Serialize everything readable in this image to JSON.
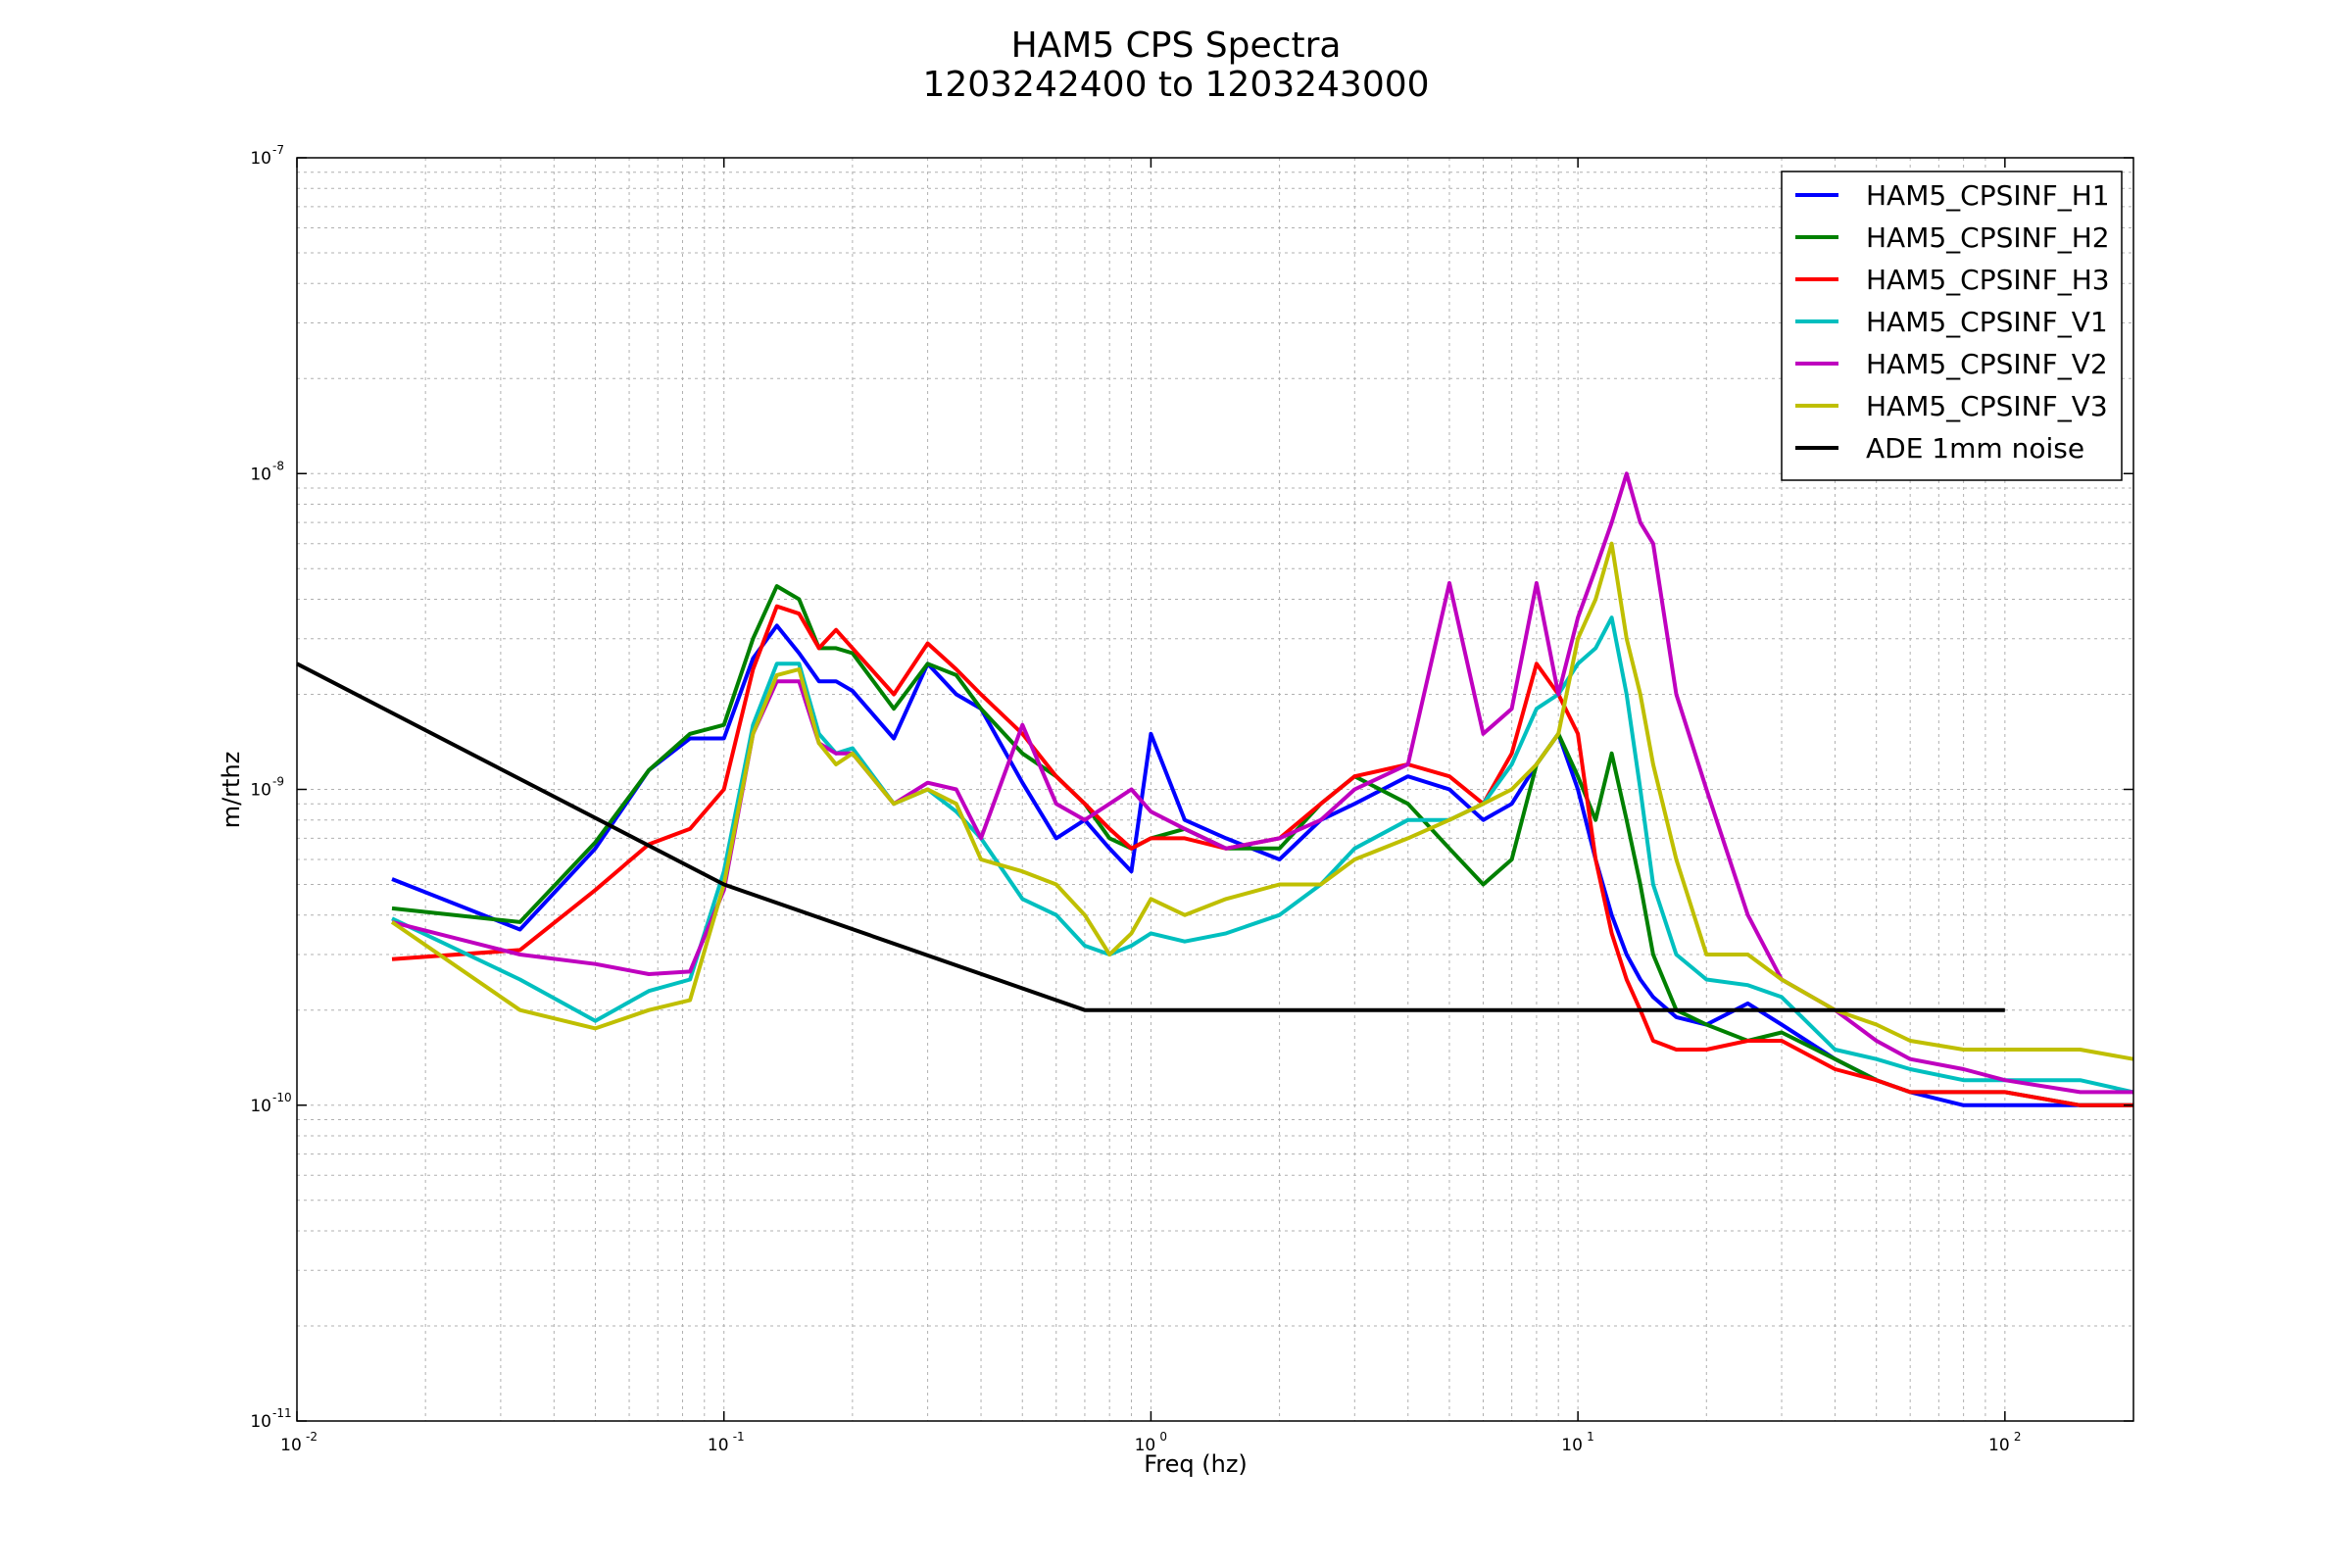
{
  "chart_data": {
    "type": "line",
    "title": "HAM5 CPS Spectra",
    "subtitle": "1203242400 to 1203243000",
    "xlabel": "Freq (hz)",
    "ylabel": "m/rthz",
    "x_scale": "log",
    "y_scale": "log",
    "xlim": [
      0.01,
      200
    ],
    "ylim": [
      1e-11,
      1e-07
    ],
    "grid": true,
    "legend_position": "top-right",
    "x_ticks": [
      {
        "value": 0.01,
        "base": "10",
        "exp": "-2"
      },
      {
        "value": 0.1,
        "base": "10",
        "exp": "-1"
      },
      {
        "value": 1,
        "base": "10",
        "exp": "0"
      },
      {
        "value": 10,
        "base": "10",
        "exp": "1"
      },
      {
        "value": 100,
        "base": "10",
        "exp": "2"
      }
    ],
    "y_ticks": [
      {
        "value": 1e-11,
        "base": "10",
        "exp": "-11"
      },
      {
        "value": 1e-10,
        "base": "10",
        "exp": "-10"
      },
      {
        "value": 1e-09,
        "base": "10",
        "exp": "-9"
      },
      {
        "value": 1e-08,
        "base": "10",
        "exp": "-8"
      },
      {
        "value": 1e-07,
        "base": "10",
        "exp": "-7"
      }
    ],
    "series": [
      {
        "name": "HAM5_CPSINF_H1",
        "color": "#0000ff",
        "x": [
          0.0167,
          0.0333,
          0.05,
          0.0667,
          0.0833,
          0.1,
          0.117,
          0.133,
          0.15,
          0.167,
          0.183,
          0.2,
          0.25,
          0.3,
          0.35,
          0.4,
          0.5,
          0.6,
          0.7,
          0.8,
          0.9,
          1.0,
          1.2,
          1.5,
          2,
          2.5,
          3,
          4,
          5,
          6,
          7,
          8,
          9,
          10,
          11,
          12,
          13,
          14,
          15,
          17,
          20,
          25,
          30,
          40,
          50,
          60,
          80,
          100,
          150,
          200
        ],
        "y": [
          5.2e-10,
          3.6e-10,
          6.5e-10,
          1.15e-09,
          1.45e-09,
          1.45e-09,
          2.6e-09,
          3.3e-09,
          2.7e-09,
          2.2e-09,
          2.2e-09,
          2.05e-09,
          1.45e-09,
          2.5e-09,
          2e-09,
          1.8e-09,
          1.05e-09,
          7e-10,
          8e-10,
          6.5e-10,
          5.5e-10,
          1.5e-09,
          8e-10,
          7e-10,
          6e-10,
          8e-10,
          9e-10,
          1.1e-09,
          1e-09,
          8e-10,
          9e-10,
          1.2e-09,
          1.5e-09,
          1e-09,
          6e-10,
          4e-10,
          3e-10,
          2.5e-10,
          2.2e-10,
          1.9e-10,
          1.8e-10,
          2.1e-10,
          1.8e-10,
          1.4e-10,
          1.2e-10,
          1.1e-10,
          1e-10,
          1e-10,
          1e-10,
          1e-10
        ]
      },
      {
        "name": "HAM5_CPSINF_H2",
        "color": "#008000",
        "x": [
          0.0167,
          0.0333,
          0.05,
          0.0667,
          0.0833,
          0.1,
          0.117,
          0.133,
          0.15,
          0.167,
          0.183,
          0.2,
          0.25,
          0.3,
          0.35,
          0.4,
          0.5,
          0.6,
          0.7,
          0.8,
          0.9,
          1.0,
          1.2,
          1.5,
          2,
          2.5,
          3,
          4,
          5,
          6,
          7,
          8,
          9,
          10,
          11,
          12,
          13,
          14,
          15,
          17,
          20,
          25,
          30,
          40,
          50,
          60,
          80,
          100,
          150,
          200
        ],
        "y": [
          4.2e-10,
          3.8e-10,
          6.8e-10,
          1.15e-09,
          1.5e-09,
          1.6e-09,
          3e-09,
          4.4e-09,
          4e-09,
          2.8e-09,
          2.8e-09,
          2.7e-09,
          1.8e-09,
          2.5e-09,
          2.3e-09,
          1.8e-09,
          1.3e-09,
          1.1e-09,
          9e-10,
          7e-10,
          6.5e-10,
          7e-10,
          7.5e-10,
          6.5e-10,
          6.5e-10,
          9e-10,
          1.1e-09,
          9e-10,
          6.5e-10,
          5e-10,
          6e-10,
          1.2e-09,
          1.5e-09,
          1.1e-09,
          8e-10,
          1.3e-09,
          8e-10,
          5e-10,
          3e-10,
          2e-10,
          1.8e-10,
          1.6e-10,
          1.7e-10,
          1.4e-10,
          1.2e-10,
          1.1e-10,
          1.1e-10,
          1.1e-10,
          1e-10,
          1e-10
        ]
      },
      {
        "name": "HAM5_CPSINF_H3",
        "color": "#ff0000",
        "x": [
          0.0167,
          0.0333,
          0.05,
          0.0667,
          0.0833,
          0.1,
          0.117,
          0.133,
          0.15,
          0.167,
          0.183,
          0.2,
          0.25,
          0.3,
          0.35,
          0.4,
          0.5,
          0.6,
          0.7,
          0.8,
          0.9,
          1.0,
          1.2,
          1.5,
          2,
          2.5,
          3,
          4,
          5,
          6,
          7,
          8,
          9,
          10,
          11,
          12,
          13,
          14,
          15,
          17,
          20,
          25,
          30,
          40,
          50,
          60,
          80,
          100,
          150,
          200
        ],
        "y": [
          2.9e-10,
          3.1e-10,
          4.8e-10,
          6.7e-10,
          7.5e-10,
          1e-09,
          2.4e-09,
          3.8e-09,
          3.6e-09,
          2.8e-09,
          3.2e-09,
          2.8e-09,
          2e-09,
          2.9e-09,
          2.4e-09,
          2e-09,
          1.5e-09,
          1.1e-09,
          9e-10,
          7.5e-10,
          6.5e-10,
          7e-10,
          7e-10,
          6.5e-10,
          7e-10,
          9e-10,
          1.1e-09,
          1.2e-09,
          1.1e-09,
          9e-10,
          1.3e-09,
          2.5e-09,
          2e-09,
          1.5e-09,
          6e-10,
          3.5e-10,
          2.5e-10,
          2e-10,
          1.6e-10,
          1.5e-10,
          1.5e-10,
          1.6e-10,
          1.6e-10,
          1.3e-10,
          1.2e-10,
          1.1e-10,
          1.1e-10,
          1.1e-10,
          1e-10,
          1e-10
        ]
      },
      {
        "name": "HAM5_CPSINF_V1",
        "color": "#00bfbf",
        "x": [
          0.0167,
          0.0333,
          0.05,
          0.0667,
          0.0833,
          0.1,
          0.117,
          0.133,
          0.15,
          0.167,
          0.183,
          0.2,
          0.25,
          0.3,
          0.35,
          0.4,
          0.5,
          0.6,
          0.7,
          0.8,
          0.9,
          1.0,
          1.2,
          1.5,
          2,
          2.5,
          3,
          4,
          5,
          6,
          7,
          8,
          9,
          10,
          11,
          12,
          13,
          14,
          15,
          17,
          20,
          25,
          30,
          40,
          50,
          60,
          80,
          100,
          150,
          200
        ],
        "y": [
          3.9e-10,
          2.5e-10,
          1.85e-10,
          2.3e-10,
          2.5e-10,
          5.5e-10,
          1.6e-09,
          2.5e-09,
          2.5e-09,
          1.5e-09,
          1.3e-09,
          1.35e-09,
          9e-10,
          1e-09,
          8.5e-10,
          7e-10,
          4.5e-10,
          4e-10,
          3.2e-10,
          3e-10,
          3.2e-10,
          3.5e-10,
          3.3e-10,
          3.5e-10,
          4e-10,
          5e-10,
          6.5e-10,
          8e-10,
          8e-10,
          9e-10,
          1.2e-09,
          1.8e-09,
          2e-09,
          2.5e-09,
          2.8e-09,
          3.5e-09,
          2e-09,
          1e-09,
          5e-10,
          3e-10,
          2.5e-10,
          2.4e-10,
          2.2e-10,
          1.5e-10,
          1.4e-10,
          1.3e-10,
          1.2e-10,
          1.2e-10,
          1.2e-10,
          1.1e-10
        ]
      },
      {
        "name": "HAM5_CPSINF_V2",
        "color": "#bf00bf",
        "x": [
          0.0167,
          0.0333,
          0.05,
          0.0667,
          0.0833,
          0.1,
          0.117,
          0.133,
          0.15,
          0.167,
          0.183,
          0.2,
          0.25,
          0.3,
          0.35,
          0.4,
          0.5,
          0.6,
          0.7,
          0.8,
          0.9,
          1.0,
          1.2,
          1.5,
          2,
          2.5,
          3,
          4,
          5,
          6,
          7,
          8,
          9,
          10,
          11,
          12,
          13,
          14,
          15,
          17,
          20,
          25,
          30,
          40,
          50,
          60,
          80,
          100,
          150,
          200
        ],
        "y": [
          3.8e-10,
          3e-10,
          2.8e-10,
          2.6e-10,
          2.65e-10,
          4.8e-10,
          1.5e-09,
          2.2e-09,
          2.2e-09,
          1.4e-09,
          1.3e-09,
          1.3e-09,
          9e-10,
          1.05e-09,
          1e-09,
          7e-10,
          1.6e-09,
          9e-10,
          8e-10,
          9e-10,
          1e-09,
          8.5e-10,
          7.5e-10,
          6.5e-10,
          7e-10,
          8e-10,
          1e-09,
          1.2e-09,
          4.5e-09,
          1.5e-09,
          1.8e-09,
          4.5e-09,
          2e-09,
          3.5e-09,
          5e-09,
          7e-09,
          1e-08,
          7e-09,
          6e-09,
          2e-09,
          1e-09,
          4e-10,
          2.5e-10,
          2e-10,
          1.6e-10,
          1.4e-10,
          1.3e-10,
          1.2e-10,
          1.1e-10,
          1.1e-10
        ]
      },
      {
        "name": "HAM5_CPSINF_V3",
        "color": "#bfbf00",
        "x": [
          0.0167,
          0.0333,
          0.05,
          0.0667,
          0.0833,
          0.1,
          0.117,
          0.133,
          0.15,
          0.167,
          0.183,
          0.2,
          0.25,
          0.3,
          0.35,
          0.4,
          0.5,
          0.6,
          0.7,
          0.8,
          0.9,
          1.0,
          1.2,
          1.5,
          2,
          2.5,
          3,
          4,
          5,
          6,
          7,
          8,
          9,
          10,
          11,
          12,
          13,
          14,
          15,
          17,
          20,
          25,
          30,
          40,
          50,
          60,
          80,
          100,
          150,
          200
        ],
        "y": [
          3.8e-10,
          2e-10,
          1.75e-10,
          2e-10,
          2.15e-10,
          5e-10,
          1.5e-09,
          2.3e-09,
          2.4e-09,
          1.4e-09,
          1.2e-09,
          1.3e-09,
          9e-10,
          1e-09,
          9e-10,
          6e-10,
          5.5e-10,
          5e-10,
          4e-10,
          3e-10,
          3.5e-10,
          4.5e-10,
          4e-10,
          4.5e-10,
          5e-10,
          5e-10,
          6e-10,
          7e-10,
          8e-10,
          9e-10,
          1e-09,
          1.2e-09,
          1.5e-09,
          3e-09,
          4e-09,
          6e-09,
          3e-09,
          2e-09,
          1.2e-09,
          6e-10,
          3e-10,
          3e-10,
          2.5e-10,
          2e-10,
          1.8e-10,
          1.6e-10,
          1.5e-10,
          1.5e-10,
          1.5e-10,
          1.4e-10
        ]
      },
      {
        "name": "ADE 1mm noise",
        "color": "#000000",
        "x": [
          0.01,
          0.1,
          0.7,
          100
        ],
        "y": [
          2.5e-09,
          5e-10,
          2e-10,
          2e-10
        ]
      }
    ]
  }
}
